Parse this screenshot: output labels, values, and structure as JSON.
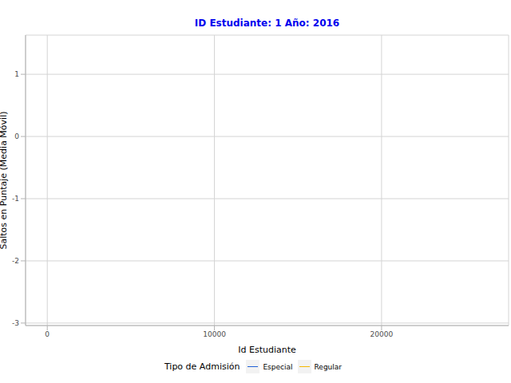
{
  "chart_data": {
    "type": "line",
    "title": "ID Estudiante: 1  Año: 2016",
    "x_label": "Id Estudiante",
    "y_label": "Saltos en Puntaje (Media Móvil)",
    "legend_title": "Tipo de Admisión",
    "legend": "bottom",
    "grid": true,
    "x": [],
    "series": [
      {
        "name": "Especial",
        "color": "#1f5fd6",
        "values": []
      },
      {
        "name": "Regular",
        "color": "#f5b800",
        "values": []
      }
    ],
    "xlim": [
      -1300,
      27600
    ],
    "xticks": [
      0,
      10000,
      20000
    ],
    "ylim": [
      -3.04,
      1.63
    ],
    "yticks": [
      -3,
      -2,
      -1,
      0,
      1
    ]
  }
}
